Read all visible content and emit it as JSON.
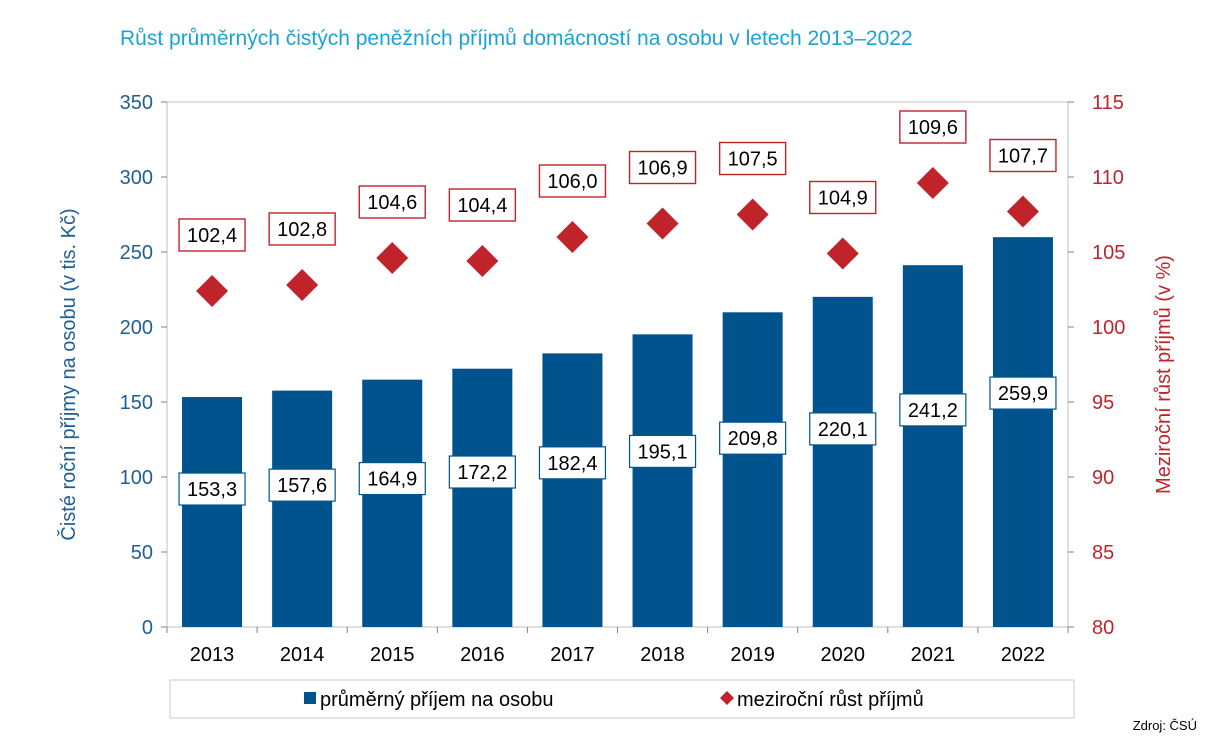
{
  "colors": {
    "bar": "#00538d",
    "marker": "#c0242a",
    "title": "#1aa3d9",
    "left_axis_text": "#1f5f93",
    "right_axis_text": "#c0242a",
    "plot_border": "#c0c0c0"
  },
  "source": "Zdroj: ČSÚ",
  "chart_data": {
    "type": "bar",
    "title": "Růst průměrných čistých peněžních příjmů domácností na osobu v letech 2013–2022",
    "categories": [
      "2013",
      "2014",
      "2015",
      "2016",
      "2017",
      "2018",
      "2019",
      "2020",
      "2021",
      "2022"
    ],
    "series": [
      {
        "name": "průměrný příjem na osobu",
        "type": "bar",
        "axis": "left",
        "values": [
          153.3,
          157.6,
          164.9,
          172.2,
          182.4,
          195.1,
          209.8,
          220.1,
          241.2,
          259.9
        ],
        "labels": [
          "153,3",
          "157,6",
          "164,9",
          "172,2",
          "182,4",
          "195,1",
          "209,8",
          "220,1",
          "241,2",
          "259,9"
        ]
      },
      {
        "name": "meziroční růst příjmů",
        "type": "scatter",
        "marker": "diamond",
        "axis": "right",
        "values": [
          102.4,
          102.8,
          104.6,
          104.4,
          106.0,
          106.9,
          107.5,
          104.9,
          109.6,
          107.7
        ],
        "labels": [
          "102,4",
          "102,8",
          "104,6",
          "104,4",
          "106,0",
          "106,9",
          "107,5",
          "104,9",
          "109,6",
          "107,7"
        ]
      }
    ],
    "ylabel": "Čisté roční příjmy na osobu (v tis. Kč)",
    "ylim": [
      0,
      350
    ],
    "yticks": [
      "0",
      "50",
      "100",
      "150",
      "200",
      "250",
      "300",
      "350"
    ],
    "y2label": "Meziroční růst příjmů (v %)",
    "y2lim": [
      80,
      115
    ],
    "y2ticks": [
      "80",
      "85",
      "90",
      "95",
      "100",
      "105",
      "110",
      "115"
    ],
    "grid": false,
    "legend_position": "bottom"
  }
}
